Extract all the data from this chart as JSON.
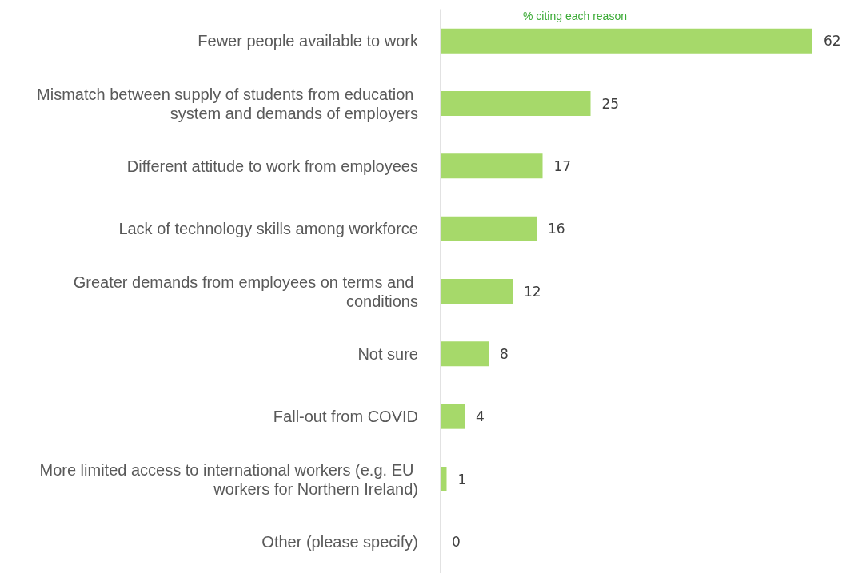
{
  "chart_data": {
    "type": "bar",
    "orientation": "horizontal",
    "title": "% citing each reason",
    "categories": [
      "Fewer people available to work",
      "Mismatch between supply of students from education system and demands of employers",
      "Different attitude to work from employees",
      "Lack of technology skills among workforce",
      "Greater demands from employees on terms and conditions",
      "Not sure",
      "Fall-out from COVID",
      "More limited access to international workers (e.g. EU workers for Northern Ireland)",
      "Other (please specify)"
    ],
    "values": [
      62,
      25,
      17,
      16,
      12,
      8,
      4,
      1,
      0
    ],
    "color": "#a6d96a",
    "data_labels": true
  }
}
